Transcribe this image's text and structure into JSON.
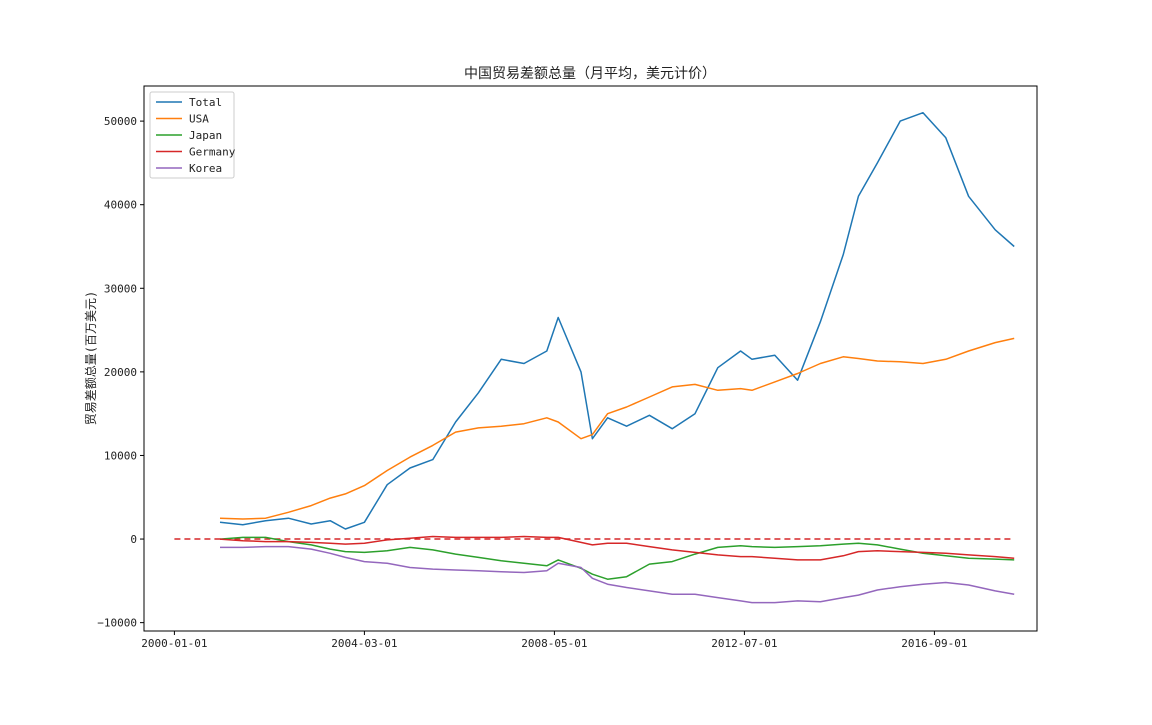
{
  "chart_data": {
    "type": "line",
    "title": "中国贸易差额总量（月平均，美元计价）",
    "xlabel": "",
    "ylabel": "贸易差额总量(百万美元)",
    "x_ticks": [
      "2000-01-01",
      "2004-03-01",
      "2008-05-01",
      "2012-07-01",
      "2016-09-01"
    ],
    "y_ticks": [
      "−10000",
      "0",
      "10000",
      "20000",
      "30000",
      "40000",
      "50000"
    ],
    "xlim": [
      "1999-05",
      "2018-12"
    ],
    "ylim": [
      -11000,
      54200
    ],
    "grid": false,
    "legend_position": "top-left",
    "reference_line": {
      "y": 0,
      "color": "#d62728",
      "style": "dashed"
    },
    "x": [
      "2001-01",
      "2001-07",
      "2002-01",
      "2002-07",
      "2003-01",
      "2003-06",
      "2003-10",
      "2004-03",
      "2004-09",
      "2005-03",
      "2005-09",
      "2006-03",
      "2006-09",
      "2007-03",
      "2007-09",
      "2008-03",
      "2008-06",
      "2008-12",
      "2009-03",
      "2009-07",
      "2009-12",
      "2010-06",
      "2010-12",
      "2011-06",
      "2011-12",
      "2012-06",
      "2012-09",
      "2013-03",
      "2013-09",
      "2014-03",
      "2014-09",
      "2015-01",
      "2015-06",
      "2015-12",
      "2016-06",
      "2016-12",
      "2017-06",
      "2018-01",
      "2018-06"
    ],
    "series": [
      {
        "name": "Total",
        "color": "#1f77b4",
        "values": [
          2000,
          1700,
          2200,
          2500,
          1800,
          2200,
          1200,
          2000,
          6500,
          8500,
          9500,
          14000,
          17500,
          21500,
          21000,
          22500,
          26500,
          20000,
          12000,
          14500,
          13500,
          14800,
          13200,
          15000,
          20500,
          22500,
          21500,
          22000,
          19000,
          26000,
          34000,
          41000,
          45000,
          50000,
          51000,
          48000,
          41000,
          37000,
          35000
        ]
      },
      {
        "name": "USA",
        "color": "#ff7f0e",
        "values": [
          2500,
          2400,
          2500,
          3200,
          4000,
          4900,
          5400,
          6400,
          8200,
          9800,
          11200,
          12800,
          13300,
          13500,
          13800,
          14500,
          14000,
          12000,
          12500,
          15000,
          15800,
          17000,
          18200,
          18500,
          17800,
          18000,
          17800,
          18800,
          19800,
          21000,
          21800,
          21600,
          21300,
          21200,
          21000,
          21500,
          22500,
          23500,
          24000
        ]
      },
      {
        "name": "Japan",
        "color": "#2ca02c",
        "values": [
          0,
          200,
          200,
          -300,
          -700,
          -1200,
          -1500,
          -1600,
          -1400,
          -1000,
          -1300,
          -1800,
          -2200,
          -2600,
          -2900,
          -3200,
          -2500,
          -3500,
          -4200,
          -4800,
          -4500,
          -3000,
          -2700,
          -1800,
          -1000,
          -800,
          -900,
          -1000,
          -900,
          -800,
          -600,
          -500,
          -700,
          -1200,
          -1700,
          -2000,
          -2300,
          -2400,
          -2500
        ]
      },
      {
        "name": "Germany",
        "color": "#d62728",
        "values": [
          0,
          -200,
          -300,
          -300,
          -400,
          -500,
          -600,
          -500,
          -100,
          100,
          300,
          200,
          200,
          200,
          300,
          200,
          200,
          -400,
          -700,
          -500,
          -500,
          -900,
          -1300,
          -1600,
          -1900,
          -2100,
          -2100,
          -2300,
          -2500,
          -2500,
          -2000,
          -1500,
          -1400,
          -1500,
          -1600,
          -1700,
          -1900,
          -2100,
          -2300
        ]
      },
      {
        "name": "Korea",
        "color": "#9467bd",
        "values": [
          -1000,
          -1000,
          -900,
          -900,
          -1200,
          -1700,
          -2200,
          -2700,
          -2900,
          -3400,
          -3600,
          -3700,
          -3800,
          -3900,
          -4000,
          -3800,
          -2900,
          -3400,
          -4700,
          -5400,
          -5800,
          -6200,
          -6600,
          -6600,
          -7000,
          -7400,
          -7600,
          -7600,
          -7400,
          -7500,
          -7000,
          -6700,
          -6100,
          -5700,
          -5400,
          -5200,
          -5500,
          -6200,
          -6600
        ]
      }
    ]
  }
}
